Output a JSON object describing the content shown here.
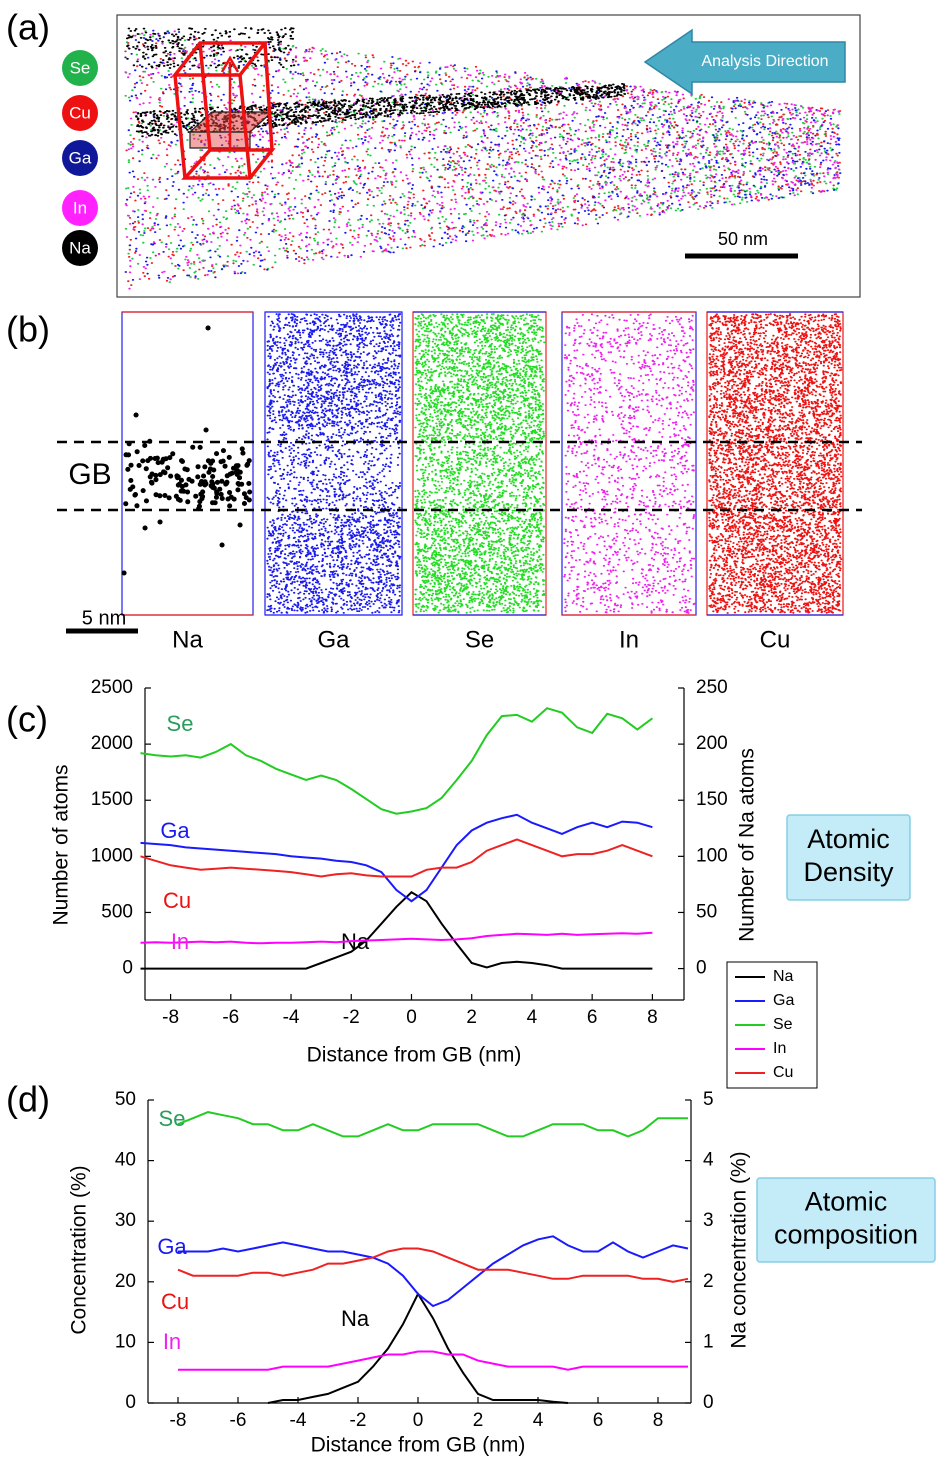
{
  "panel_a": {
    "label": "(a)",
    "elements": [
      "Se",
      "Cu",
      "Ga",
      "In",
      "Na"
    ],
    "arrow_label": "Analysis Direction",
    "scale_bar": "50 nm"
  },
  "panel_b": {
    "label": "(b)",
    "boundary": "GB",
    "scale_bar": "5 nm",
    "columns": [
      "Na",
      "Ga",
      "Se",
      "In",
      "Cu"
    ]
  },
  "chart_data": [
    {
      "type": "line",
      "panel_label": "(c)",
      "callout": [
        "Atomic",
        "Density"
      ],
      "xlabel": "Distance from GB (nm)",
      "ylabel": "Number of atoms",
      "y2label": "Number of Na atoms",
      "legend": true,
      "x": [
        -9,
        -8.5,
        -8,
        -7.5,
        -7,
        -6.5,
        -6,
        -5.5,
        -5,
        -4.5,
        -4,
        -3.5,
        -3,
        -2.5,
        -2,
        -1.5,
        -1,
        -0.5,
        0,
        0.5,
        1,
        1.5,
        2,
        2.5,
        3,
        3.5,
        4,
        4.5,
        5,
        5.5,
        6,
        6.5,
        7,
        7.5,
        8
      ],
      "series": [
        {
          "name": "Na",
          "color": "#000000",
          "axis": "y2",
          "values": [
            0,
            0,
            0,
            0,
            0,
            0,
            0,
            0,
            0,
            0,
            0,
            0,
            5,
            10,
            15,
            25,
            40,
            55,
            68,
            60,
            40,
            22,
            5,
            1,
            5,
            6,
            5,
            3,
            0,
            0,
            0,
            0,
            0,
            0,
            0
          ]
        },
        {
          "name": "Ga",
          "color": "#1a1aff",
          "values": [
            1120,
            1110,
            1100,
            1080,
            1070,
            1060,
            1050,
            1040,
            1030,
            1020,
            1000,
            990,
            980,
            960,
            950,
            920,
            860,
            700,
            600,
            700,
            900,
            1100,
            1230,
            1300,
            1340,
            1370,
            1300,
            1250,
            1200,
            1260,
            1300,
            1260,
            1310,
            1300,
            1260
          ]
        },
        {
          "name": "Se",
          "color": "#22cc22",
          "values": [
            1920,
            1900,
            1890,
            1900,
            1880,
            1930,
            2000,
            1900,
            1850,
            1780,
            1730,
            1680,
            1720,
            1680,
            1600,
            1510,
            1420,
            1380,
            1400,
            1430,
            1520,
            1680,
            1850,
            2080,
            2250,
            2260,
            2200,
            2320,
            2280,
            2150,
            2100,
            2270,
            2230,
            2130,
            2230
          ]
        },
        {
          "name": "In",
          "color": "#ff00ff",
          "values": [
            230,
            235,
            230,
            235,
            240,
            235,
            240,
            230,
            225,
            230,
            230,
            235,
            240,
            235,
            245,
            250,
            255,
            260,
            265,
            260,
            255,
            260,
            270,
            290,
            300,
            310,
            305,
            300,
            310,
            300,
            305,
            310,
            315,
            310,
            320
          ]
        },
        {
          "name": "Cu",
          "color": "#ee2222",
          "values": [
            1000,
            960,
            920,
            900,
            880,
            890,
            900,
            890,
            880,
            870,
            860,
            840,
            820,
            840,
            850,
            830,
            820,
            820,
            820,
            880,
            900,
            900,
            950,
            1050,
            1100,
            1150,
            1100,
            1050,
            1000,
            1020,
            1020,
            1050,
            1100,
            1050,
            1000
          ]
        }
      ],
      "xlim": [
        -8.85,
        9.05
      ],
      "xticks": [
        -8,
        -6,
        -4,
        -2,
        0,
        2,
        4,
        6,
        8
      ],
      "ylim": [
        -280,
        2500
      ],
      "yticks": [
        0,
        500,
        1000,
        1500,
        2000,
        2500
      ],
      "y2lim": [
        -28,
        250
      ],
      "y2ticks": [
        0,
        50,
        100,
        150,
        200,
        250
      ]
    },
    {
      "type": "line",
      "panel_label": "(d)",
      "callout": [
        "Atomic",
        "composition"
      ],
      "xlabel": "Distance from GB (nm)",
      "ylabel": "Concentration (%)",
      "y2label": "Na concentration (%)",
      "legend": false,
      "x": [
        -8,
        -7.5,
        -7,
        -6.5,
        -6,
        -5.5,
        -5,
        -4.5,
        -4,
        -3.5,
        -3,
        -2.5,
        -2,
        -1.5,
        -1,
        -0.5,
        0,
        0.5,
        1,
        1.5,
        2,
        2.5,
        3,
        3.5,
        4,
        4.5,
        5,
        5.5,
        6,
        6.5,
        7,
        7.5,
        8,
        8.5,
        9
      ],
      "series": [
        {
          "name": "Na",
          "color": "#000000",
          "axis": "y2",
          "values": [
            null,
            null,
            null,
            null,
            null,
            null,
            0,
            0.05,
            0.05,
            0.1,
            0.15,
            0.25,
            0.35,
            0.6,
            0.9,
            1.3,
            1.8,
            1.4,
            0.9,
            0.5,
            0.15,
            0.05,
            0.05,
            0.05,
            0.05,
            0.02,
            0,
            null,
            null,
            null,
            null,
            null,
            null,
            null,
            null
          ]
        },
        {
          "name": "Ga",
          "color": "#1a1aff",
          "values": [
            25,
            25,
            25,
            25.5,
            25,
            25.5,
            26,
            26.5,
            26,
            25.5,
            25,
            25,
            24.5,
            24,
            23,
            21,
            18,
            16,
            17,
            19,
            21,
            23,
            24.5,
            26,
            27,
            27.5,
            26,
            25,
            25,
            26.5,
            25,
            24,
            25,
            26,
            25.5
          ]
        },
        {
          "name": "Se",
          "color": "#22cc22",
          "values": [
            46,
            47,
            48,
            47.5,
            47,
            46,
            46,
            45,
            45,
            46,
            45,
            44,
            44,
            45,
            46,
            45,
            45,
            46,
            46,
            46,
            46,
            45,
            44,
            44,
            45,
            46,
            46,
            46,
            45,
            45,
            44,
            45,
            47,
            47,
            47
          ]
        },
        {
          "name": "In",
          "color": "#ff00ff",
          "values": [
            5.5,
            5.5,
            5.5,
            5.5,
            5.5,
            5.5,
            5.5,
            6,
            6,
            6,
            6,
            6.5,
            7,
            7.5,
            8,
            8,
            8.5,
            8.5,
            8,
            8,
            7,
            6.5,
            6,
            6,
            6,
            6,
            5.5,
            6,
            6,
            6,
            6,
            6,
            6,
            6,
            6
          ]
        },
        {
          "name": "Cu",
          "color": "#ee2222",
          "values": [
            22,
            21,
            21,
            21,
            21,
            21.5,
            21.5,
            21,
            21.5,
            22,
            23,
            23,
            23.5,
            24,
            25,
            25.5,
            25.5,
            25,
            24,
            23,
            22,
            22,
            22,
            21.5,
            21,
            20.5,
            20.5,
            21,
            21,
            21,
            21,
            20.5,
            20.5,
            20,
            20.5
          ]
        }
      ],
      "xlim": [
        -9,
        9.1
      ],
      "xticks": [
        -8,
        -6,
        -4,
        -2,
        0,
        2,
        4,
        6,
        8
      ],
      "ylim": [
        0,
        50
      ],
      "yticks": [
        0,
        10,
        20,
        30,
        40,
        50
      ],
      "y2lim": [
        0,
        5
      ],
      "y2ticks": [
        0,
        1,
        2,
        3,
        4,
        5
      ]
    }
  ]
}
